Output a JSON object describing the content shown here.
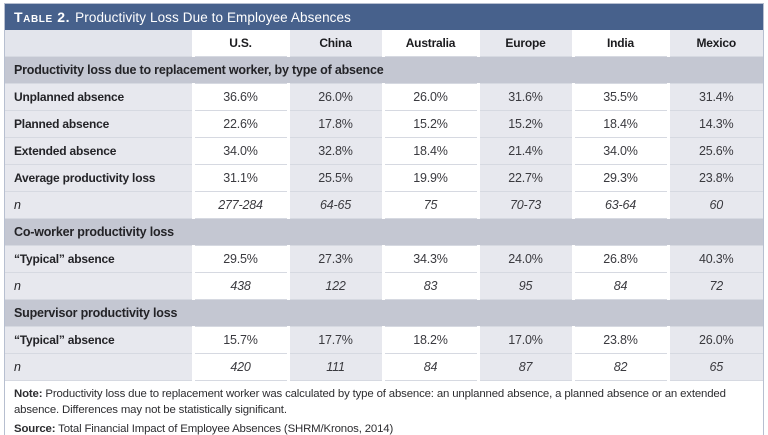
{
  "title": {
    "label": "Table 2.",
    "text": "Productivity Loss Due to Employee Absences"
  },
  "columns": [
    "U.S.",
    "China",
    "Australia",
    "Europe",
    "India",
    "Mexico"
  ],
  "sections": [
    {
      "header": "Productivity loss due to replacement worker, by type of absence",
      "rows": [
        {
          "label": "Unplanned absence",
          "italic": false,
          "values": [
            "36.6%",
            "26.0%",
            "26.0%",
            "31.6%",
            "35.5%",
            "31.4%"
          ]
        },
        {
          "label": "Planned absence",
          "italic": false,
          "values": [
            "22.6%",
            "17.8%",
            "15.2%",
            "15.2%",
            "18.4%",
            "14.3%"
          ]
        },
        {
          "label": "Extended absence",
          "italic": false,
          "values": [
            "34.0%",
            "32.8%",
            "18.4%",
            "21.4%",
            "34.0%",
            "25.6%"
          ]
        },
        {
          "label": "Average productivity loss",
          "italic": false,
          "values": [
            "31.1%",
            "25.5%",
            "19.9%",
            "22.7%",
            "29.3%",
            "23.8%"
          ]
        },
        {
          "label": "n",
          "italic": true,
          "values": [
            "277-284",
            "64-65",
            "75",
            "70-73",
            "63-64",
            "60"
          ]
        }
      ]
    },
    {
      "header": "Co-worker productivity loss",
      "rows": [
        {
          "label": "“Typical” absence",
          "italic": false,
          "values": [
            "29.5%",
            "27.3%",
            "34.3%",
            "24.0%",
            "26.8%",
            "40.3%"
          ]
        },
        {
          "label": "n",
          "italic": true,
          "values": [
            "438",
            "122",
            "83",
            "95",
            "84",
            "72"
          ]
        }
      ]
    },
    {
      "header": "Supervisor productivity loss",
      "rows": [
        {
          "label": "“Typical” absence",
          "italic": false,
          "values": [
            "15.7%",
            "17.7%",
            "18.2%",
            "17.0%",
            "23.8%",
            "26.0%"
          ]
        },
        {
          "label": "n",
          "italic": true,
          "values": [
            "420",
            "111",
            "84",
            "87",
            "82",
            "65"
          ]
        }
      ]
    }
  ],
  "note": {
    "label": "Note:",
    "text": " Productivity loss due to replacement worker was calculated by type of absence: an unplanned absence, a planned absence or an extended absence. Differences may not be statistically significant."
  },
  "source": {
    "label": "Source:",
    "text": " Total Financial Impact of Employee Absences (SHRM/Kronos, 2014)"
  },
  "colors": {
    "title_bar": "#47618c",
    "section_header_bg": "#c4c7d2",
    "shade_bg": "#e7e8ee",
    "border": "#b7bfd0",
    "row_divider": "#d6d9e1"
  }
}
